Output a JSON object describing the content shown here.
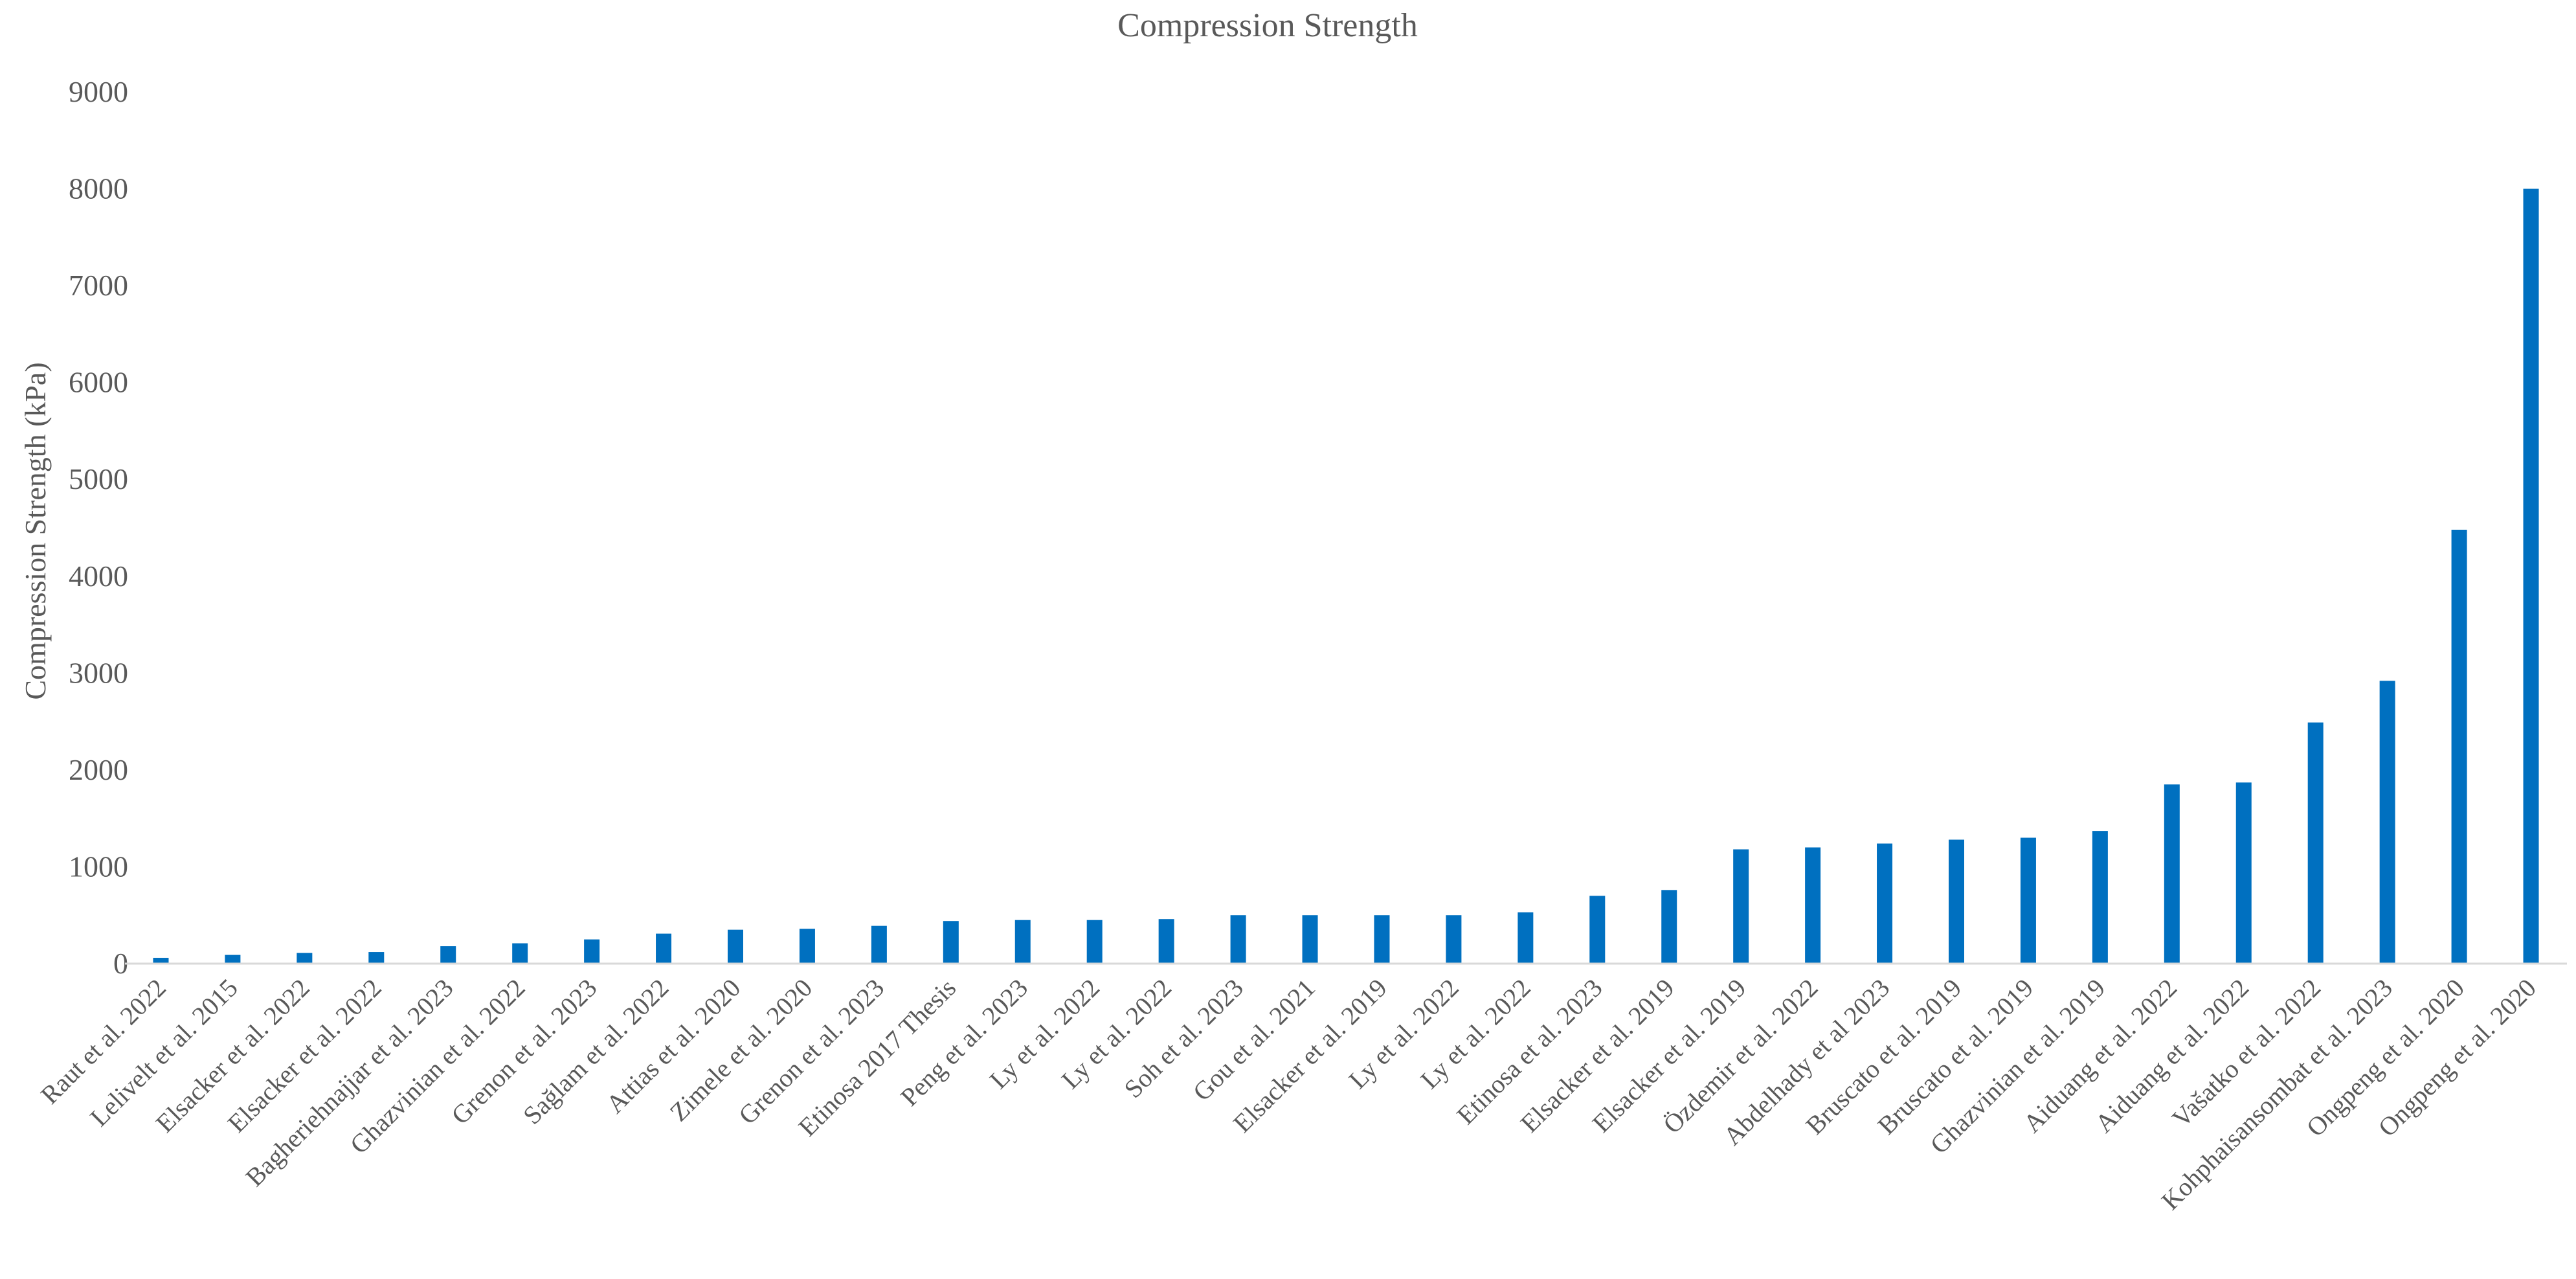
{
  "chart_data": {
    "type": "bar",
    "title": "Compression Strength",
    "xlabel": "",
    "ylabel": "Compression Strength (kPa)",
    "ylim": [
      0,
      9000
    ],
    "yticks": [
      0,
      1000,
      2000,
      3000,
      4000,
      5000,
      6000,
      7000,
      8000,
      9000
    ],
    "grid": false,
    "legend": "none",
    "bar_color": "#0070C0",
    "categories": [
      "Raut et al. 2022",
      "Lelivelt et al. 2015",
      "Elsacker et al. 2022",
      "Elsacker et al. 2022",
      "Bagheriehnajjar et al. 2023",
      "Ghazvinian et al. 2022",
      "Grenon et al. 2023",
      "Sağlam et al. 2022",
      "Attias et al. 2020",
      "Zimele et al. 2020",
      "Grenon et al. 2023",
      "Etinosa 2017 Thesis",
      "Peng et al. 2023",
      "Ly et al. 2022",
      "Ly et al. 2022",
      "Soh et al. 2023",
      "Gou et al. 2021",
      "Elsacker et al. 2019",
      "Ly et al. 2022",
      "Ly et al. 2022",
      "Etinosa et al. 2023",
      "Elsacker et al. 2019",
      "Elsacker et al. 2019",
      "Özdemir et al. 2022",
      "Abdelhady et al 2023",
      "Bruscato et al. 2019",
      "Bruscato et al. 2019",
      "Ghazvinian et al. 2019",
      "Aiduang et al. 2022",
      "Aiduang et al. 2022",
      "Vašatko et al. 2022",
      "Kohphaisansombat et al. 2023",
      "Ongpeng et al. 2020",
      "Ongpeng et al. 2020"
    ],
    "values": [
      60,
      90,
      110,
      120,
      180,
      210,
      250,
      310,
      350,
      360,
      390,
      440,
      450,
      450,
      460,
      500,
      500,
      500,
      500,
      530,
      700,
      760,
      1180,
      1200,
      1240,
      1280,
      1300,
      1370,
      1850,
      1870,
      2490,
      2920,
      4480,
      8000
    ]
  }
}
